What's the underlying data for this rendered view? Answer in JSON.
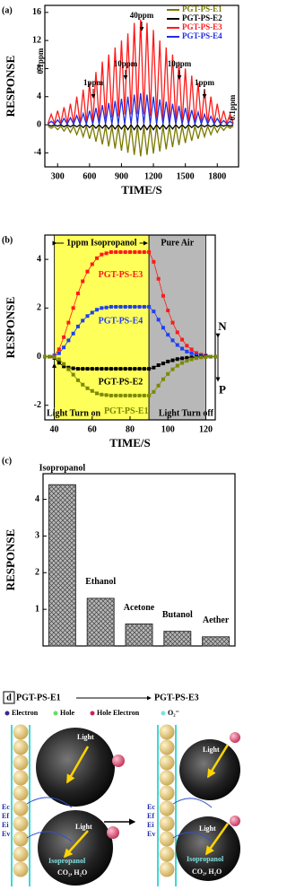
{
  "chart_data": [
    {
      "type": "line",
      "label": "(a)",
      "x_label": "TIME/S",
      "y_label": "RESPONSE",
      "x": [
        210,
        240,
        270,
        300,
        330,
        360,
        390,
        420,
        450,
        480,
        510,
        540,
        570,
        600,
        630,
        660,
        690,
        720,
        750,
        780,
        810,
        840,
        870,
        900,
        930,
        960,
        990,
        1020,
        1050,
        1080,
        1110,
        1140,
        1170,
        1200,
        1230,
        1260,
        1290,
        1320,
        1350,
        1380,
        1410,
        1440,
        1470,
        1500,
        1530,
        1560,
        1590,
        1620,
        1650,
        1680,
        1710,
        1740,
        1770,
        1800,
        1830,
        1860,
        1890,
        1920,
        1950
      ],
      "series": [
        {
          "name": "PGT-PS-E1",
          "color": "#7a7a00",
          "values": [
            -0.2,
            -0.5,
            -0.2,
            -0.7,
            -0.2,
            -0.9,
            -0.2,
            -1.1,
            -0.2,
            -1.4,
            -0.2,
            -1.7,
            -0.2,
            -2,
            -0.2,
            -2.4,
            -0.2,
            -2.8,
            -0.2,
            -3.1,
            -0.2,
            -3.4,
            -0.2,
            -3.7,
            -0.2,
            -4,
            -0.2,
            -4.3,
            -0.2,
            -4.5,
            -0.2,
            -4.3,
            -0.2,
            -4.1,
            -0.2,
            -3.8,
            -0.2,
            -3.5,
            -0.2,
            -3.2,
            -0.2,
            -2.9,
            -0.2,
            -2.6,
            -0.2,
            -2.3,
            -0.2,
            -2,
            -0.2,
            -1.7,
            -0.2,
            -1.4,
            -0.2,
            -1.1,
            -0.2,
            -0.8,
            -0.2,
            -0.5,
            -0.2
          ]
        },
        {
          "name": "PGT-PS-E2",
          "color": "#000000",
          "values": [
            0,
            -0.2,
            0,
            -0.2,
            0,
            -0.3,
            0,
            -0.3,
            0,
            -0.3,
            0,
            -0.4,
            0,
            -0.4,
            0,
            -0.5,
            0,
            -0.5,
            0,
            -0.6,
            0,
            -0.6,
            0,
            -0.6,
            0,
            -0.7,
            0,
            -0.7,
            0,
            -0.7,
            0,
            -0.7,
            0,
            -0.7,
            0,
            -0.6,
            0,
            -0.6,
            0,
            -0.6,
            0,
            -0.5,
            0,
            -0.5,
            0,
            -0.4,
            0,
            -0.4,
            0,
            -0.3,
            0,
            -0.3,
            0,
            -0.3,
            0,
            -0.2,
            0,
            -0.2,
            0
          ]
        },
        {
          "name": "PGT-PS-E3",
          "color": "#ff1a1a",
          "values": [
            0.2,
            1.5,
            0.2,
            2,
            0.2,
            2.5,
            0.2,
            3,
            0.2,
            4,
            0.2,
            5,
            0.2,
            6,
            0.2,
            7.5,
            0.5,
            9,
            0.8,
            10,
            1,
            11,
            1.2,
            12,
            1.5,
            13,
            1.5,
            14.5,
            1.5,
            15,
            1.5,
            14.5,
            1.2,
            13.5,
            1,
            12,
            0.8,
            11,
            0.5,
            10,
            0.2,
            9,
            0.2,
            8,
            0.2,
            7,
            0.2,
            6,
            0.2,
            5,
            0.2,
            4,
            0.2,
            3,
            0.2,
            2,
            0.2,
            1.5,
            0.2
          ]
        },
        {
          "name": "PGT-PS-E4",
          "color": "#1f2fe0",
          "values": [
            0.1,
            0.5,
            0.1,
            0.7,
            0.1,
            0.9,
            0.1,
            1,
            0.1,
            1.3,
            0.1,
            1.6,
            0.1,
            2,
            0.1,
            2.4,
            0.1,
            2.8,
            0.1,
            3.1,
            0.1,
            3.4,
            0.1,
            3.7,
            0.1,
            4,
            0.1,
            4.3,
            0.1,
            4.5,
            0.1,
            4.3,
            0.1,
            4,
            0.1,
            3.6,
            0.1,
            3.3,
            0.1,
            3,
            0.1,
            2.7,
            0.1,
            2.4,
            0.1,
            2.1,
            0.1,
            1.8,
            0.1,
            1.5,
            0.1,
            1.2,
            0.1,
            0.9,
            0.1,
            0.6,
            0.1,
            0.5,
            0.1
          ]
        }
      ],
      "annotations": [
        "0.1ppm",
        "1ppm",
        "10ppm",
        "40ppm",
        "10ppm",
        "1ppm",
        "0.1ppm"
      ],
      "xlim": [
        180,
        2000
      ],
      "xticks": [
        300,
        600,
        900,
        1200,
        1500,
        1800
      ],
      "ylim": [
        -6,
        17
      ],
      "yticks": [
        -4,
        0,
        4,
        8,
        12,
        16
      ],
      "legend": "upper right"
    },
    {
      "type": "line",
      "label": "(b)",
      "x_label": "TIME/S",
      "y_label": "RESPONSE",
      "markers": true,
      "x": [
        35,
        37.5,
        40,
        42.5,
        45,
        47.5,
        50,
        52.5,
        55,
        57.5,
        60,
        62.5,
        65,
        67.5,
        70,
        72.5,
        75,
        77.5,
        80,
        82.5,
        85,
        87.5,
        90,
        92.5,
        95,
        97.5,
        100,
        102.5,
        105,
        107.5,
        110,
        112.5,
        115,
        117.5,
        120,
        122.5,
        125
      ],
      "series": [
        {
          "name": "PGT-PS-E3",
          "color": "#ff1a1a",
          "values": [
            0,
            0,
            0.05,
            0.3,
            0.8,
            1.4,
            2.0,
            2.6,
            3.1,
            3.5,
            3.8,
            4.05,
            4.2,
            4.25,
            4.3,
            4.3,
            4.3,
            4.3,
            4.3,
            4.3,
            4.3,
            4.3,
            4.3,
            3.9,
            3.2,
            2.5,
            1.9,
            1.4,
            1.0,
            0.7,
            0.45,
            0.3,
            0.15,
            0.08,
            0.05,
            0,
            0
          ]
        },
        {
          "name": "PGT-PS-E4",
          "color": "#2040f0",
          "values": [
            0,
            0,
            0.02,
            0.14,
            0.38,
            0.67,
            0.95,
            1.24,
            1.48,
            1.67,
            1.81,
            1.93,
            2.0,
            2.02,
            2.05,
            2.05,
            2.05,
            2.05,
            2.05,
            2.05,
            2.05,
            2.05,
            2.05,
            1.86,
            1.52,
            1.19,
            0.9,
            0.67,
            0.48,
            0.33,
            0.21,
            0.14,
            0.07,
            0.04,
            0.02,
            0,
            0
          ]
        },
        {
          "name": "PGT-PS-E2",
          "color": "#000000",
          "values": [
            0,
            0,
            -0.05,
            -0.25,
            -0.4,
            -0.45,
            -0.48,
            -0.5,
            -0.5,
            -0.5,
            -0.5,
            -0.5,
            -0.5,
            -0.5,
            -0.5,
            -0.5,
            -0.5,
            -0.5,
            -0.5,
            -0.5,
            -0.5,
            -0.5,
            -0.5,
            -0.45,
            -0.35,
            -0.28,
            -0.2,
            -0.15,
            -0.1,
            -0.07,
            -0.05,
            -0.03,
            -0.02,
            0,
            0,
            0,
            0
          ]
        },
        {
          "name": "PGT-PS-E1",
          "color": "#7a8a00",
          "values": [
            0,
            0,
            -0.02,
            -0.11,
            -0.3,
            -0.52,
            -0.74,
            -0.97,
            -1.15,
            -1.3,
            -1.41,
            -1.51,
            -1.56,
            -1.58,
            -1.6,
            -1.6,
            -1.6,
            -1.6,
            -1.6,
            -1.6,
            -1.6,
            -1.6,
            -1.6,
            -1.45,
            -1.19,
            -0.93,
            -0.71,
            -0.52,
            -0.37,
            -0.26,
            -0.17,
            -0.11,
            -0.06,
            -0.03,
            -0.02,
            0,
            0
          ]
        }
      ],
      "shaded_regions": [
        {
          "from": 40,
          "to": 90,
          "color": "#ffff5a"
        },
        {
          "from": 90,
          "to": 120,
          "color": "#b8b8b8"
        }
      ],
      "annotations": [
        "1ppm Isopropanol",
        "Pure Air",
        "Light Turn on",
        "Light Turn off",
        "N",
        "P"
      ],
      "xlim": [
        35,
        125
      ],
      "xticks": [
        40,
        60,
        80,
        100,
        120
      ],
      "ylim": [
        -2.6,
        5.0
      ],
      "yticks": [
        -2,
        0,
        2,
        4
      ]
    },
    {
      "type": "bar",
      "label": "(c)",
      "y_label": "RESPONSE",
      "categories": [
        "Isopropanol",
        "Ethanol",
        "Acetone",
        "Butanol",
        "Aether"
      ],
      "values": [
        4.4,
        1.3,
        0.6,
        0.4,
        0.25
      ],
      "color": "#b0b0b0",
      "ylim": [
        0,
        4.7
      ],
      "yticks": [
        1,
        2,
        3,
        4
      ]
    }
  ],
  "diagram": {
    "panel_label": "d",
    "from": "PGT-PS-E1",
    "to": "PGT-PS-E3",
    "legend": [
      "Electron",
      "Hole",
      "Hole Electron",
      "O₂⁻"
    ],
    "left": {
      "light": [
        "Light",
        "Light"
      ],
      "bands": [
        "Ec",
        "Ef",
        "Ei",
        "Ev"
      ],
      "gas": "Isopropanol",
      "products": "CO₂, H₂O"
    },
    "right": {
      "light": [
        "Light",
        "Light"
      ],
      "bands": [
        "Ec",
        "Ef",
        "Ei",
        "Ev"
      ],
      "gas": "Isopropanol",
      "products": "CO₂, H₂O"
    }
  }
}
